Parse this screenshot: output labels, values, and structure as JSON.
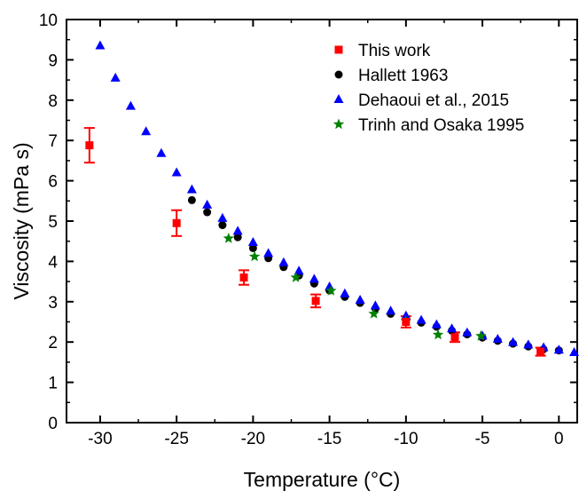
{
  "chart_data": {
    "type": "scatter",
    "title": "",
    "xlabel": "Temperature (°C)",
    "ylabel": "Viscosity (mPa s)",
    "xlim": [
      -32.2,
      1.2
    ],
    "ylim": [
      0,
      10
    ],
    "x_ticks": [
      -30,
      -25,
      -20,
      -15,
      -10,
      -5,
      0
    ],
    "y_ticks": [
      0,
      1,
      2,
      3,
      4,
      5,
      6,
      7,
      8,
      9,
      10
    ],
    "grid": false,
    "legend_position": "top-right",
    "series": [
      {
        "name": "This work",
        "marker": "square",
        "color": "#ff0000",
        "points": [
          {
            "x": -30.7,
            "y": 6.88,
            "err": 0.43
          },
          {
            "x": -25.0,
            "y": 4.95,
            "err": 0.32
          },
          {
            "x": -20.6,
            "y": 3.6,
            "err": 0.18
          },
          {
            "x": -15.9,
            "y": 3.02,
            "err": 0.16
          },
          {
            "x": -10.0,
            "y": 2.5,
            "err": 0.14
          },
          {
            "x": -6.8,
            "y": 2.12,
            "err": 0.12
          },
          {
            "x": -1.2,
            "y": 1.76,
            "err": 0.1
          }
        ]
      },
      {
        "name": "Hallett 1963",
        "marker": "circle",
        "color": "#000000",
        "points": [
          {
            "x": -24.0,
            "y": 5.52
          },
          {
            "x": -23.0,
            "y": 5.22
          },
          {
            "x": -22.0,
            "y": 4.9
          },
          {
            "x": -21.0,
            "y": 4.6
          },
          {
            "x": -20.0,
            "y": 4.33
          },
          {
            "x": -19.0,
            "y": 4.08
          },
          {
            "x": -18.0,
            "y": 3.86
          },
          {
            "x": -17.0,
            "y": 3.65
          },
          {
            "x": -16.0,
            "y": 3.45
          },
          {
            "x": -15.0,
            "y": 3.28
          },
          {
            "x": -14.0,
            "y": 3.12
          },
          {
            "x": -13.0,
            "y": 2.97
          },
          {
            "x": -12.0,
            "y": 2.83
          },
          {
            "x": -11.0,
            "y": 2.7
          },
          {
            "x": -10.0,
            "y": 2.58
          },
          {
            "x": -9.0,
            "y": 2.48
          },
          {
            "x": -8.0,
            "y": 2.38
          },
          {
            "x": -7.0,
            "y": 2.28
          },
          {
            "x": -6.0,
            "y": 2.19
          },
          {
            "x": -5.0,
            "y": 2.11
          },
          {
            "x": -4.0,
            "y": 2.03
          },
          {
            "x": -3.0,
            "y": 1.96
          },
          {
            "x": -2.0,
            "y": 1.89
          },
          {
            "x": -1.0,
            "y": 1.82
          },
          {
            "x": 0.0,
            "y": 1.79
          }
        ]
      },
      {
        "name": "Dehaoui et al., 2015",
        "marker": "triangle",
        "color": "#0000ff",
        "points": [
          {
            "x": -30.0,
            "y": 9.35
          },
          {
            "x": -29.0,
            "y": 8.55
          },
          {
            "x": -28.0,
            "y": 7.85
          },
          {
            "x": -27.0,
            "y": 7.22
          },
          {
            "x": -26.0,
            "y": 6.68
          },
          {
            "x": -25.0,
            "y": 6.2
          },
          {
            "x": -24.0,
            "y": 5.78
          },
          {
            "x": -23.0,
            "y": 5.4
          },
          {
            "x": -22.0,
            "y": 5.07
          },
          {
            "x": -21.0,
            "y": 4.75
          },
          {
            "x": -20.0,
            "y": 4.47
          },
          {
            "x": -19.0,
            "y": 4.2
          },
          {
            "x": -18.0,
            "y": 3.97
          },
          {
            "x": -17.0,
            "y": 3.76
          },
          {
            "x": -16.0,
            "y": 3.56
          },
          {
            "x": -15.0,
            "y": 3.37
          },
          {
            "x": -14.0,
            "y": 3.2
          },
          {
            "x": -13.0,
            "y": 3.04
          },
          {
            "x": -12.0,
            "y": 2.9
          },
          {
            "x": -11.0,
            "y": 2.77
          },
          {
            "x": -10.0,
            "y": 2.65
          },
          {
            "x": -9.0,
            "y": 2.54
          },
          {
            "x": -8.0,
            "y": 2.43
          },
          {
            "x": -7.0,
            "y": 2.33
          },
          {
            "x": -6.0,
            "y": 2.23
          },
          {
            "x": -5.0,
            "y": 2.15
          },
          {
            "x": -4.0,
            "y": 2.07
          },
          {
            "x": -3.0,
            "y": 1.99
          },
          {
            "x": -2.0,
            "y": 1.93
          },
          {
            "x": -1.0,
            "y": 1.86
          },
          {
            "x": 0.0,
            "y": 1.8
          },
          {
            "x": 1.0,
            "y": 1.74
          }
        ]
      },
      {
        "name": "Trinh and Osaka 1995",
        "marker": "star",
        "color": "#008000",
        "points": [
          {
            "x": -21.6,
            "y": 4.57
          },
          {
            "x": -19.9,
            "y": 4.12
          },
          {
            "x": -17.2,
            "y": 3.6
          },
          {
            "x": -14.9,
            "y": 3.27
          },
          {
            "x": -12.1,
            "y": 2.7
          },
          {
            "x": -10.0,
            "y": 2.52
          },
          {
            "x": -7.9,
            "y": 2.18
          },
          {
            "x": -5.1,
            "y": 2.15
          }
        ]
      }
    ]
  }
}
